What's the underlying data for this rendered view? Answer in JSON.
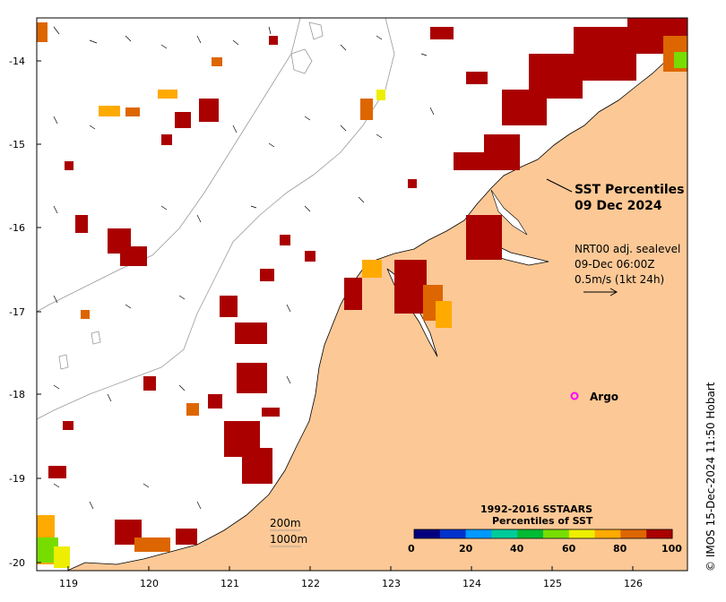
{
  "map": {
    "title_line1": "SST Percentiles",
    "title_line2": "09 Dec 2024",
    "current_info": {
      "line1": "NRT00 adj. sealevel",
      "line2": "09-Dec 06:00Z",
      "line3": "0.5m/s (1kt 24h)"
    },
    "argo_label": "Argo",
    "isobaths": [
      "200m",
      "1000m"
    ],
    "credit": "© IMOS 15-Dec-2024 11:50 Hobart",
    "lat_labels": [
      "-14",
      "-15",
      "-16",
      "-17",
      "-18",
      "-19",
      "-20"
    ],
    "lon_labels": [
      "119",
      "120",
      "121",
      "122",
      "123",
      "124",
      "125",
      "126"
    ],
    "legend": {
      "title_line1": "1992-2016 SSTAARS",
      "title_line2": "Percentiles of SST",
      "tick_labels": [
        "0",
        "20",
        "40",
        "60",
        "80",
        "100"
      ],
      "colors": [
        "#00007f",
        "#0033cc",
        "#0099ff",
        "#00cc99",
        "#00bb33",
        "#77dd00",
        "#eeee00",
        "#ffaa00",
        "#dd6600",
        "#aa0000"
      ]
    },
    "colors": {
      "land": "#fcc896",
      "ocean": "#ffffff",
      "hot_spots": "#aa0000",
      "argo": "#ff00ff"
    }
  }
}
